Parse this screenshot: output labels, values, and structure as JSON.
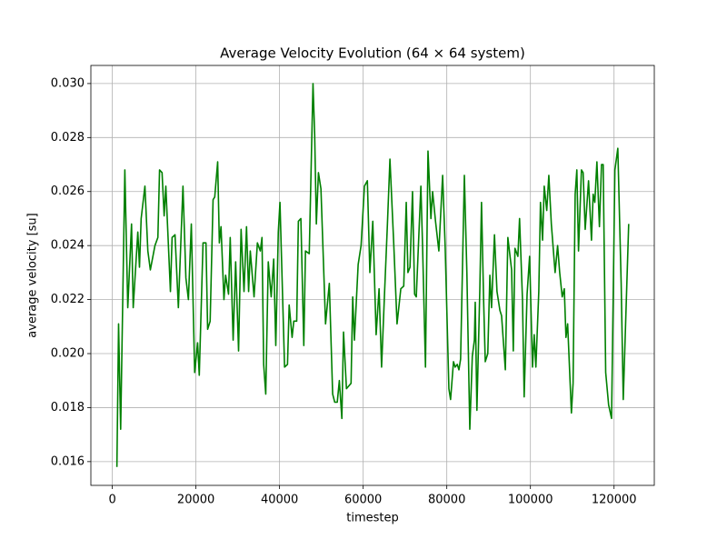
{
  "chart_data": {
    "type": "line",
    "title": "Average Velocity Evolution (64 × 64 system)",
    "x_label": "timestep",
    "y_label": "average velocity [su]",
    "x": [
      1100,
      1500,
      2000,
      3000,
      3700,
      4600,
      5000,
      6100,
      6500,
      6900,
      7800,
      8500,
      9100,
      10200,
      10900,
      11300,
      11900,
      12400,
      12800,
      13900,
      14300,
      15000,
      15800,
      16900,
      17600,
      18200,
      18900,
      19700,
      20400,
      20800,
      21700,
      22400,
      22800,
      23400,
      24100,
      24500,
      25200,
      25600,
      26000,
      26700,
      27100,
      27800,
      28200,
      28900,
      29500,
      30200,
      30800,
      31500,
      32100,
      32600,
      33000,
      33900,
      34700,
      35400,
      35800,
      36200,
      36700,
      37300,
      38000,
      38600,
      39100,
      39700,
      40100,
      41200,
      41900,
      42300,
      43000,
      43400,
      44100,
      44500,
      45100,
      45800,
      46200,
      47100,
      48000,
      48400,
      48800,
      49300,
      49900,
      51000,
      51900,
      52700,
      53200,
      53800,
      54300,
      54900,
      55300,
      56000,
      57100,
      57500,
      57900,
      58800,
      59500,
      60300,
      61000,
      61600,
      62300,
      63100,
      63800,
      64400,
      65100,
      65800,
      66400,
      67300,
      68100,
      69000,
      69700,
      70300,
      70700,
      71200,
      71800,
      72300,
      72700,
      73800,
      74200,
      74900,
      75500,
      76200,
      76600,
      77300,
      78100,
      79000,
      79600,
      80500,
      80900,
      81600,
      82000,
      82500,
      82900,
      83300,
      84200,
      84800,
      85500,
      86100,
      86600,
      86800,
      87200,
      87900,
      88300,
      88800,
      89200,
      89800,
      90300,
      90700,
      91400,
      92000,
      92700,
      93100,
      94000,
      94600,
      95500,
      95900,
      96300,
      97000,
      97400,
      98100,
      98500,
      99200,
      99800,
      100500,
      100900,
      101300,
      102000,
      102400,
      102900,
      103300,
      103900,
      104400,
      105000,
      105900,
      106500,
      107000,
      107600,
      108100,
      108500,
      108900,
      109800,
      110200,
      110700,
      111100,
      111500,
      112200,
      112600,
      113100,
      113900,
      114600,
      115000,
      115400,
      115900,
      116500,
      117000,
      117400,
      118000,
      118700,
      119400,
      120200,
      120900,
      121700,
      122200,
      122600,
      123500
    ],
    "series": [
      {
        "color": "#008000",
        "values": [
          0.0158,
          0.0211,
          0.0172,
          0.0268,
          0.0217,
          0.0248,
          0.0217,
          0.0245,
          0.0232,
          0.025,
          0.0262,
          0.0238,
          0.0231,
          0.024,
          0.0243,
          0.0268,
          0.0267,
          0.0251,
          0.0262,
          0.0223,
          0.0243,
          0.0244,
          0.0217,
          0.0262,
          0.0228,
          0.022,
          0.0248,
          0.0193,
          0.0204,
          0.0192,
          0.0241,
          0.0241,
          0.0209,
          0.0212,
          0.0257,
          0.0258,
          0.0271,
          0.0241,
          0.0247,
          0.022,
          0.0229,
          0.0222,
          0.0243,
          0.0205,
          0.0234,
          0.0201,
          0.0246,
          0.0223,
          0.0247,
          0.0223,
          0.0238,
          0.0221,
          0.0241,
          0.0238,
          0.0243,
          0.0196,
          0.0185,
          0.0234,
          0.0221,
          0.0235,
          0.0203,
          0.0245,
          0.0256,
          0.0195,
          0.0196,
          0.0218,
          0.0206,
          0.0212,
          0.0212,
          0.0249,
          0.025,
          0.0203,
          0.0238,
          0.0237,
          0.03,
          0.0281,
          0.0248,
          0.0267,
          0.0261,
          0.0211,
          0.0226,
          0.0185,
          0.0182,
          0.0182,
          0.019,
          0.0176,
          0.0208,
          0.0187,
          0.0189,
          0.0221,
          0.0205,
          0.0233,
          0.024,
          0.0262,
          0.0264,
          0.023,
          0.0249,
          0.0207,
          0.0224,
          0.0195,
          0.0222,
          0.0248,
          0.0272,
          0.0241,
          0.0211,
          0.0224,
          0.0225,
          0.0256,
          0.023,
          0.0232,
          0.026,
          0.0222,
          0.0221,
          0.0262,
          0.024,
          0.0195,
          0.0275,
          0.025,
          0.026,
          0.0249,
          0.0238,
          0.0266,
          0.024,
          0.0187,
          0.0183,
          0.0197,
          0.0195,
          0.0196,
          0.0194,
          0.0198,
          0.0266,
          0.023,
          0.0172,
          0.0199,
          0.0205,
          0.0219,
          0.0179,
          0.0224,
          0.0256,
          0.022,
          0.0197,
          0.02,
          0.0229,
          0.0217,
          0.0244,
          0.0223,
          0.0216,
          0.0214,
          0.0194,
          0.0243,
          0.0231,
          0.0201,
          0.0239,
          0.0236,
          0.025,
          0.022,
          0.0184,
          0.0222,
          0.0236,
          0.0195,
          0.0207,
          0.0195,
          0.0223,
          0.0256,
          0.0242,
          0.0262,
          0.0253,
          0.0266,
          0.0248,
          0.023,
          0.024,
          0.023,
          0.0221,
          0.0224,
          0.0206,
          0.0211,
          0.0178,
          0.0189,
          0.0259,
          0.0268,
          0.0238,
          0.0268,
          0.0267,
          0.0246,
          0.0264,
          0.0242,
          0.0259,
          0.0256,
          0.0271,
          0.0247,
          0.027,
          0.027,
          0.0193,
          0.0181,
          0.0176,
          0.0268,
          0.0276,
          0.0226,
          0.0183,
          0.0203,
          0.0248
        ]
      }
    ],
    "xlim": [
      -5125,
      129625
    ],
    "ylim": [
      0.01512,
      0.03067
    ],
    "xticks": [
      0,
      20000,
      40000,
      60000,
      80000,
      100000,
      120000
    ],
    "yticks": [
      0.016,
      {
        "value": 0.018,
        "label": "0.018"
      },
      {
        "value": 0.02,
        "label": "0.020"
      },
      0.022,
      0.024,
      0.026,
      0.028,
      {
        "value": 0.03,
        "label": "0.030"
      }
    ],
    "grid": true
  }
}
